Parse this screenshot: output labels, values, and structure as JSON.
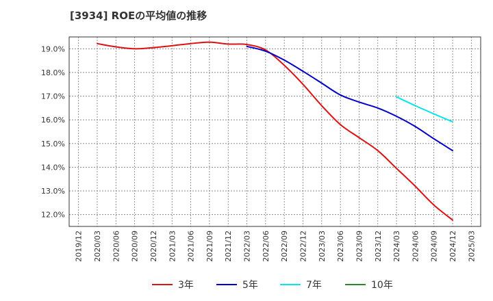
{
  "chart_data": {
    "type": "line",
    "title": "[3934]  ROEの平均値の推移",
    "xlabel": "",
    "ylabel": "",
    "ylim": [
      11.5,
      19.5
    ],
    "y_ticks": [
      "12.0%",
      "13.0%",
      "14.0%",
      "15.0%",
      "16.0%",
      "17.0%",
      "18.0%",
      "19.0%"
    ],
    "y_tick_values": [
      12,
      13,
      14,
      15,
      16,
      17,
      18,
      19
    ],
    "x_ticks": [
      "2019/12",
      "2020/03",
      "2020/06",
      "2020/09",
      "2020/12",
      "2021/03",
      "2021/06",
      "2021/09",
      "2021/12",
      "2022/03",
      "2022/06",
      "2022/09",
      "2022/12",
      "2023/03",
      "2023/06",
      "2023/09",
      "2023/12",
      "2024/03",
      "2024/06",
      "2024/09",
      "2024/12",
      "2025/03"
    ],
    "grid": true,
    "legend_position": "bottom",
    "series": [
      {
        "name": "3年",
        "color": "#dd1111",
        "x": [
          "2020/03",
          "2020/06",
          "2020/09",
          "2020/12",
          "2021/03",
          "2021/06",
          "2021/09",
          "2021/12",
          "2022/03",
          "2022/06",
          "2022/09",
          "2022/12",
          "2023/03",
          "2023/06",
          "2023/09",
          "2023/12",
          "2024/03",
          "2024/06",
          "2024/09",
          "2024/12"
        ],
        "values": [
          19.22,
          19.08,
          19.0,
          19.05,
          19.13,
          19.22,
          19.28,
          19.2,
          19.18,
          18.95,
          18.3,
          17.5,
          16.6,
          15.8,
          15.25,
          14.7,
          13.95,
          13.2,
          12.4,
          11.77
        ]
      },
      {
        "name": "5年",
        "color": "#0000cc",
        "x": [
          "2022/03",
          "2022/06",
          "2022/09",
          "2022/12",
          "2023/03",
          "2023/06",
          "2023/09",
          "2023/12",
          "2024/03",
          "2024/06",
          "2024/09",
          "2024/12"
        ],
        "values": [
          19.1,
          18.9,
          18.52,
          18.05,
          17.55,
          17.05,
          16.75,
          16.5,
          16.15,
          15.72,
          15.2,
          14.7
        ]
      },
      {
        "name": "7年",
        "color": "#00e5ee",
        "x": [
          "2024/03",
          "2024/06",
          "2024/09",
          "2024/12"
        ],
        "values": [
          16.97,
          16.6,
          16.25,
          15.92
        ]
      },
      {
        "name": "10年",
        "color": "#228b22",
        "x": [],
        "values": []
      }
    ]
  }
}
